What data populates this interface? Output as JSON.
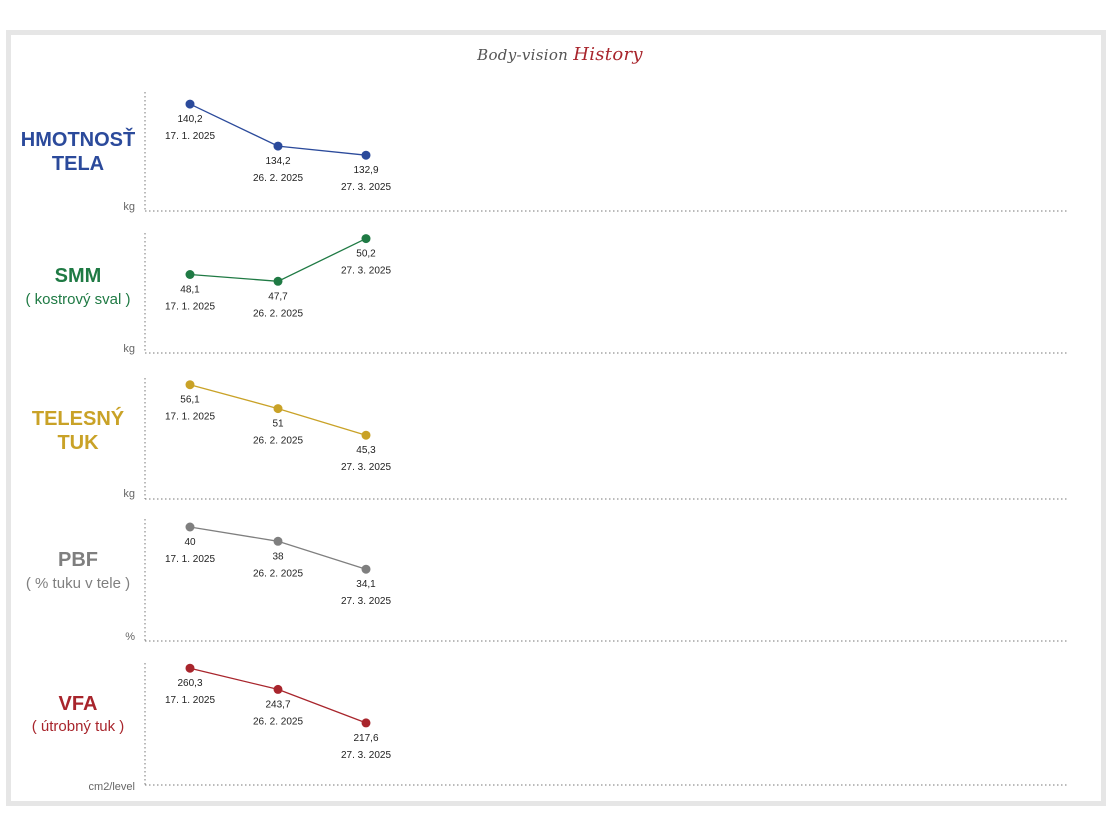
{
  "header": {
    "title_plain": "Body-vision",
    "title_accent": "History"
  },
  "charts": [
    {
      "name_lines": [
        "HMOTNOSŤ",
        "TELA"
      ],
      "subtitle": "",
      "unit": "kg",
      "color": "#2b4a9b",
      "x": [
        "17. 1. 2025",
        "26. 2. 2025",
        "27. 3. 2025"
      ],
      "values": [
        140.2,
        134.2,
        132.9
      ],
      "value_labels": [
        "140,2",
        "134,2",
        "132,9"
      ],
      "ylim": [
        131.5,
        141.5
      ]
    },
    {
      "name_lines": [
        "SMM"
      ],
      "subtitle": "( kostrový sval )",
      "unit": "kg",
      "color": "#1f7a44",
      "x": [
        "17. 1. 2025",
        "26. 2. 2025",
        "27. 3. 2025"
      ],
      "values": [
        48.1,
        47.7,
        50.2
      ],
      "value_labels": [
        "48,1",
        "47,7",
        "50,2"
      ],
      "ylim": [
        46.2,
        50.35
      ]
    },
    {
      "name_lines": [
        "TELESNÝ",
        "TUK"
      ],
      "subtitle": "",
      "unit": "kg",
      "color": "#c9a227",
      "x": [
        "17. 1. 2025",
        "26. 2. 2025",
        "27. 3. 2025"
      ],
      "values": [
        56.1,
        51,
        45.3
      ],
      "value_labels": [
        "56,1",
        "51",
        "45,3"
      ],
      "ylim": [
        41.5,
        56.9
      ]
    },
    {
      "name_lines": [
        "PBF"
      ],
      "subtitle": "( % tuku v tele )",
      "unit": "%",
      "color": "#7f7f7f",
      "x": [
        "17. 1. 2025",
        "26. 2. 2025",
        "27. 3. 2025"
      ],
      "values": [
        40,
        38,
        34.1
      ],
      "value_labels": [
        "40",
        "38",
        "34,1"
      ],
      "ylim": [
        30.5,
        40.7
      ]
    },
    {
      "name_lines": [
        "VFA"
      ],
      "subtitle": "( útrobný tuk )",
      "unit": "cm2/level",
      "color": "#a8252c",
      "x": [
        "17. 1. 2025",
        "26. 2. 2025",
        "27. 3. 2025"
      ],
      "values": [
        260.3,
        243.7,
        217.6
      ],
      "value_labels": [
        "260,3",
        "243,7",
        "217,6"
      ],
      "ylim": [
        205,
        262
      ]
    }
  ],
  "chart_data": [
    {
      "type": "line",
      "title": "HMOTNOSŤ TELA",
      "ylabel": "kg",
      "x": [
        "17. 1. 2025",
        "26. 2. 2025",
        "27. 3. 2025"
      ],
      "series": [
        {
          "values": [
            140.2,
            134.2,
            132.9
          ]
        }
      ],
      "grid": false,
      "legend": "none"
    },
    {
      "type": "line",
      "title": "SMM ( kostrový sval )",
      "ylabel": "kg",
      "x": [
        "17. 1. 2025",
        "26. 2. 2025",
        "27. 3. 2025"
      ],
      "series": [
        {
          "values": [
            48.1,
            47.7,
            50.2
          ]
        }
      ],
      "grid": false,
      "legend": "none"
    },
    {
      "type": "line",
      "title": "TELESNÝ TUK",
      "ylabel": "kg",
      "x": [
        "17. 1. 2025",
        "26. 2. 2025",
        "27. 3. 2025"
      ],
      "series": [
        {
          "values": [
            56.1,
            51,
            45.3
          ]
        }
      ],
      "grid": false,
      "legend": "none"
    },
    {
      "type": "line",
      "title": "PBF ( % tuku v tele )",
      "ylabel": "%",
      "x": [
        "17. 1. 2025",
        "26. 2. 2025",
        "27. 3. 2025"
      ],
      "series": [
        {
          "values": [
            40,
            38,
            34.1
          ]
        }
      ],
      "grid": false,
      "legend": "none"
    },
    {
      "type": "line",
      "title": "VFA ( útrobný tuk )",
      "ylabel": "cm2/level",
      "x": [
        "17. 1. 2025",
        "26. 2. 2025",
        "27. 3. 2025"
      ],
      "series": [
        {
          "values": [
            260.3,
            243.7,
            217.6
          ]
        }
      ],
      "grid": false,
      "legend": "none"
    }
  ]
}
